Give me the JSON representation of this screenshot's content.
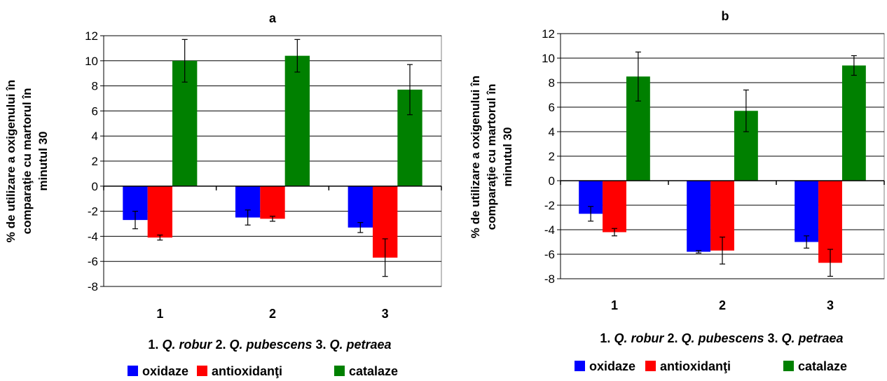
{
  "chart_data": [
    {
      "type": "bar",
      "title": "a",
      "ylabel_lines": [
        "% de utilizare a oxigenului în",
        "comparaţie cu martorul în",
        "minutul 30"
      ],
      "categories": [
        "1",
        "2",
        "3"
      ],
      "ylim": [
        -8,
        12
      ],
      "yticks": [
        12,
        10,
        8,
        6,
        4,
        2,
        0,
        -2,
        -4,
        -6,
        -8
      ],
      "grid": true,
      "species_caption": [
        {
          "text": "1. ",
          "italic": false
        },
        {
          "text": "Q. robur",
          "italic": true
        },
        {
          "text": " 2. ",
          "italic": false
        },
        {
          "text": "Q. pubescens",
          "italic": true
        },
        {
          "text": " 3. ",
          "italic": false
        },
        {
          "text": "Q. petraea",
          "italic": true
        }
      ],
      "legend_position": "bottom",
      "series": [
        {
          "name": "oxidaze",
          "color": "#0000FF",
          "values": [
            -2.7,
            -2.5,
            -3.3
          ],
          "err": [
            0.7,
            0.6,
            0.4
          ]
        },
        {
          "name": "antioxidanţi",
          "color": "#FF0000",
          "values": [
            -4.1,
            -2.6,
            -5.7
          ],
          "err": [
            0.2,
            0.2,
            1.5
          ]
        },
        {
          "name": "catalaze",
          "color": "#008000",
          "values": [
            10.0,
            10.4,
            7.7
          ],
          "err": [
            1.7,
            1.3,
            2.0
          ]
        }
      ]
    },
    {
      "type": "bar",
      "title": "b",
      "ylabel_lines": [
        "% de utilizare a oxigenului în",
        "comparaţie cu martorul în",
        "minutul 30"
      ],
      "categories": [
        "1",
        "2",
        "3"
      ],
      "ylim": [
        -8,
        12
      ],
      "yticks": [
        12,
        10,
        8,
        6,
        4,
        2,
        0,
        -2,
        -4,
        -6,
        -8
      ],
      "grid": true,
      "species_caption": [
        {
          "text": "1. ",
          "italic": false
        },
        {
          "text": "Q. robur",
          "italic": true
        },
        {
          "text": " 2. ",
          "italic": false
        },
        {
          "text": "Q. pubescens",
          "italic": true
        },
        {
          "text": " 3. ",
          "italic": false
        },
        {
          "text": "Q. petraea",
          "italic": true
        }
      ],
      "legend_position": "bottom",
      "series": [
        {
          "name": "oxidaze",
          "color": "#0000FF",
          "values": [
            -2.7,
            -5.8,
            -5.0
          ],
          "err": [
            0.6,
            0.1,
            0.5
          ]
        },
        {
          "name": "antioxidanţi",
          "color": "#FF0000",
          "values": [
            -4.2,
            -5.7,
            -6.7
          ],
          "err": [
            0.3,
            1.1,
            1.1
          ]
        },
        {
          "name": "catalaze",
          "color": "#008000",
          "values": [
            8.5,
            5.7,
            9.4
          ],
          "err": [
            2.0,
            1.7,
            0.8
          ]
        }
      ]
    }
  ]
}
